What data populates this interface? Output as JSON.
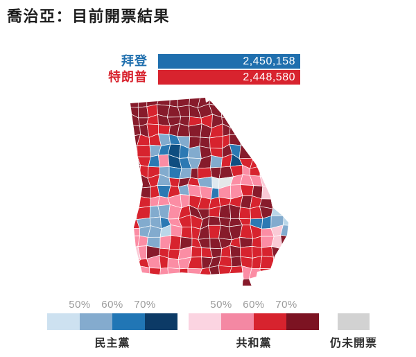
{
  "title": "喬治亞：目前開票結果",
  "bar_chart": {
    "candidates": [
      {
        "name": "拜登",
        "votes": "2,450,158",
        "color": "#1f6fae"
      },
      {
        "name": "特朗普",
        "votes": "2,448,580",
        "color": "#d8232e"
      }
    ]
  },
  "legend": {
    "democrat": {
      "label": "民主黨",
      "ticks": [
        "50%",
        "60%",
        "70%"
      ],
      "colors": [
        "#cde1f0",
        "#84abce",
        "#2176b5",
        "#0c3a66"
      ]
    },
    "republican": {
      "label": "共和黨",
      "ticks": [
        "50%",
        "60%",
        "70%"
      ],
      "colors": [
        "#fbd4e1",
        "#f488a3",
        "#d7232e",
        "#7c1322"
      ]
    },
    "uncounted": {
      "label": "仍未開票",
      "color": "#d2d2d2"
    }
  },
  "map": {
    "region_label": "喬治亞",
    "colors": {
      "M": "#871b2b",
      "R": "#d7232e",
      "P": "#fb8da4",
      "p": "#facad6",
      "D": "#0f4e80",
      "B": "#2b79b3",
      "b": "#82abce",
      "l": "#b9d6e8",
      "g": "#dfe9ef",
      "G": "#e4e7e9"
    },
    "grid": [
      "MMMMMMMMMM......",
      "MMRMMMMMMM......",
      "MMRMMMRRMMM.....",
      "MMRRMMMMRMM.....",
      "MRRbBbMMRRMM....",
      "MRbBDBbMRMBMM...",
      "MRBPDBbMbRDRRR..",
      "MRRbBbMRMMRPRpp.",
      "MMRbRMRbgGPPPpp.",
      "MMRBRbPPBPPRMpp.",
      "MRPPPPRRRRRMRMMM",
      "MRbbPRMMRMMRRMlM",
      "RbbBPRRMMMMRBBbl",
      "PbblPRRMRMMRRPpb",
      "PPbPRMRMMMRMRPpM",
      "pPMRRPRRMRMRRRMM",
      "PRPRPPRMMRMRRRR.",
      "pPRPPRPRMRRPPR..",
      "..........MM...."
    ]
  },
  "chart_data": [
    {
      "type": "bar",
      "orientation": "horizontal",
      "title": "喬治亞：目前開票結果",
      "categories": [
        "拜登",
        "特朗普"
      ],
      "values": [
        2450158,
        2448580
      ],
      "value_labels": [
        "2,450,158",
        "2,448,580"
      ],
      "colors": [
        "#1f6fae",
        "#d8232e"
      ],
      "xlim": [
        0,
        2450158
      ]
    },
    {
      "type": "choropleth",
      "region": "喬治亞 (Georgia) counties",
      "legend": {
        "民主黨": {
          "bins": [
            "<50%",
            "50%",
            "60%",
            "70%"
          ],
          "colors": [
            "#cde1f0",
            "#84abce",
            "#2176b5",
            "#0c3a66"
          ]
        },
        "共和黨": {
          "bins": [
            "<50%",
            "50%",
            "60%",
            "70%"
          ],
          "colors": [
            "#fbd4e1",
            "#f488a3",
            "#d7232e",
            "#7c1322"
          ]
        },
        "仍未開票": {
          "colors": [
            "#d2d2d2"
          ]
        }
      }
    }
  ]
}
